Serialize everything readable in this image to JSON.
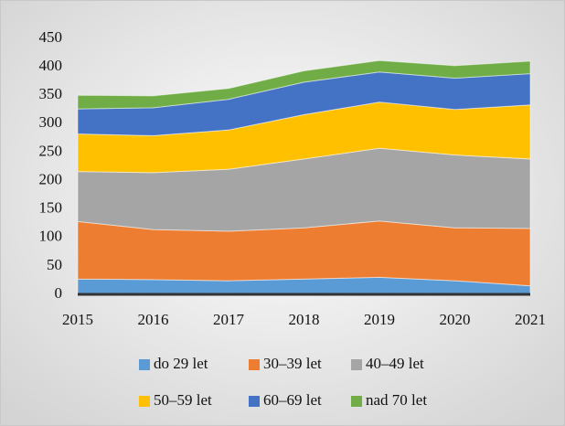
{
  "chart_data": {
    "type": "stacked_area",
    "categories": [
      "2015",
      "2016",
      "2017",
      "2018",
      "2019",
      "2020",
      "2021"
    ],
    "series": [
      {
        "name": "do 29 let",
        "color": "#5b9bd5",
        "values": [
          27,
          26,
          24,
          27,
          30,
          24,
          15
        ]
      },
      {
        "name": "30–39 let",
        "color": "#ed7d31",
        "values": [
          101,
          88,
          87,
          90,
          99,
          93,
          101
        ]
      },
      {
        "name": "40–49 let",
        "color": "#a5a5a5",
        "values": [
          88,
          100,
          109,
          121,
          128,
          128,
          122
        ]
      },
      {
        "name": "50–59 let",
        "color": "#ffc000",
        "values": [
          66,
          65,
          69,
          78,
          81,
          80,
          95
        ]
      },
      {
        "name": "60–69 let",
        "color": "#4472c4",
        "values": [
          44,
          49,
          54,
          57,
          53,
          55,
          55
        ]
      },
      {
        "name": "nad 70 let",
        "color": "#70ad47",
        "values": [
          24,
          21,
          19,
          20,
          20,
          22,
          22
        ]
      }
    ],
    "ylim": [
      0,
      450
    ],
    "yticks": [
      0,
      50,
      100,
      150,
      200,
      250,
      300,
      350,
      400,
      450
    ],
    "legend": "bottom"
  }
}
